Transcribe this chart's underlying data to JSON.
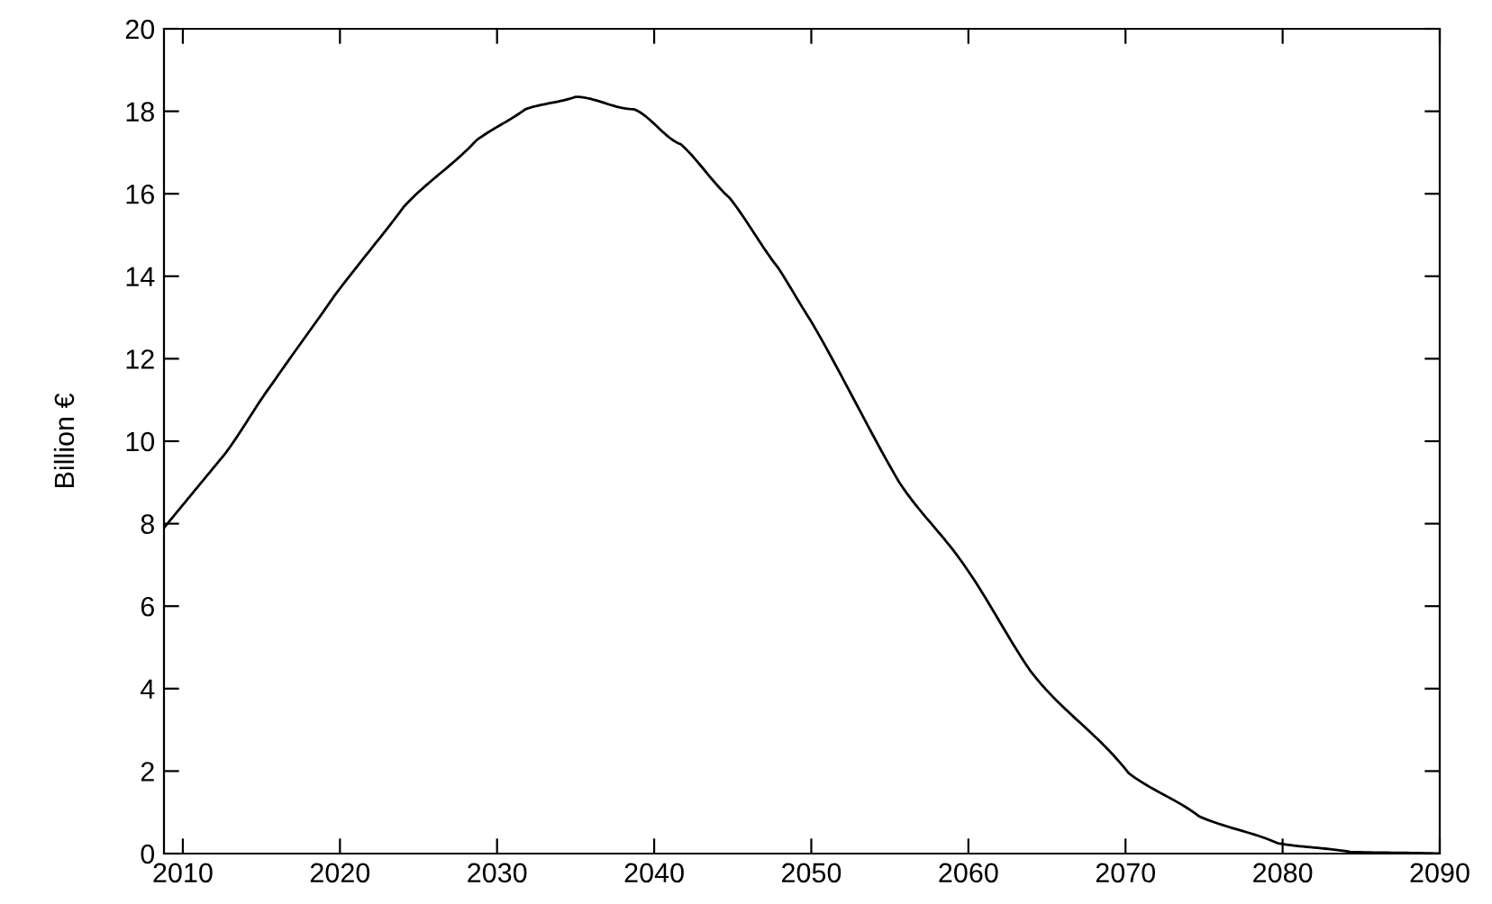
{
  "chart_data": {
    "type": "line",
    "ylabel": "Billion €",
    "x": [
      2008.8,
      2012.7,
      2015.7,
      2019.6,
      2024.1,
      2028.7,
      2031.8,
      2035,
      2038.7,
      2041.7,
      2044.8,
      2047.9,
      2050,
      2055.6,
      2059.9,
      2064,
      2070.2,
      2074.7,
      2079.7,
      2084.3,
      2090
    ],
    "series": [
      {
        "color": "#000000",
        "values": [
          7.9,
          9.7,
          11.4,
          13.5,
          15.7,
          17.3,
          18.05,
          18.35,
          18.05,
          17.2,
          15.9,
          14.2,
          12.9,
          9.0,
          6.9,
          4.4,
          1.95,
          0.9,
          0.25,
          0.04,
          0
        ]
      }
    ],
    "xlim": [
      2008.8,
      2090
    ],
    "xticks": [
      2010,
      2020,
      2030,
      2040,
      2050,
      2060,
      2070,
      2080,
      2090
    ],
    "ylim": [
      0,
      20
    ],
    "yticks": [
      0,
      2,
      4,
      6,
      8,
      10,
      12,
      14,
      16,
      18,
      20
    ],
    "marker": "none",
    "line_style": "solid",
    "grid": false,
    "legend": false
  }
}
